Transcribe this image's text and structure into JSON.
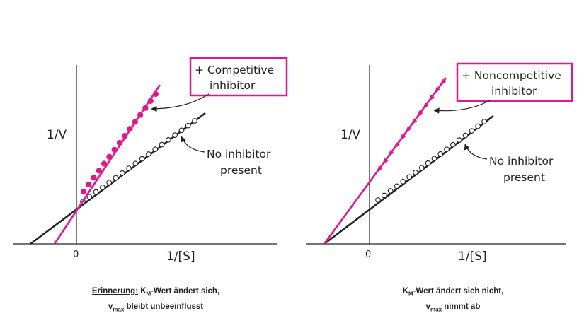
{
  "colors": {
    "inhibited": "#e0188c",
    "uninhibited": "#222222",
    "box": "#e0188c"
  },
  "panels": [
    {
      "id": "competitive",
      "y_axis_label": "1/V",
      "x_axis_label": "1/[S]",
      "origin_label": "0",
      "inhibitor_label": [
        "+ Competitive",
        "inhibitor"
      ],
      "no_inhibitor_label": [
        "No inhibitor",
        "present"
      ],
      "caption_line1_prefix": "Erinnerung:",
      "caption_line1_km": "K",
      "caption_line1_sub": "M",
      "caption_line1_rest": "-Wert ändert sich,",
      "caption_line2_v": "v",
      "caption_line2_sub": "max",
      "caption_line2_rest": " bleibt unbeeinflusst"
    },
    {
      "id": "noncompetitive",
      "y_axis_label": "1/V",
      "x_axis_label": "1/[S]",
      "origin_label": "0",
      "inhibitor_label": [
        "+ Noncompetitive",
        "inhibitor"
      ],
      "no_inhibitor_label": [
        "No inhibitor",
        "present"
      ],
      "caption_line1_km": "K",
      "caption_line1_sub": "M",
      "caption_line1_rest": "-Wert ändert sich nicht,",
      "caption_line2_v": "v",
      "caption_line2_sub": "max",
      "caption_line2_rest": " nimmt ab"
    }
  ]
}
